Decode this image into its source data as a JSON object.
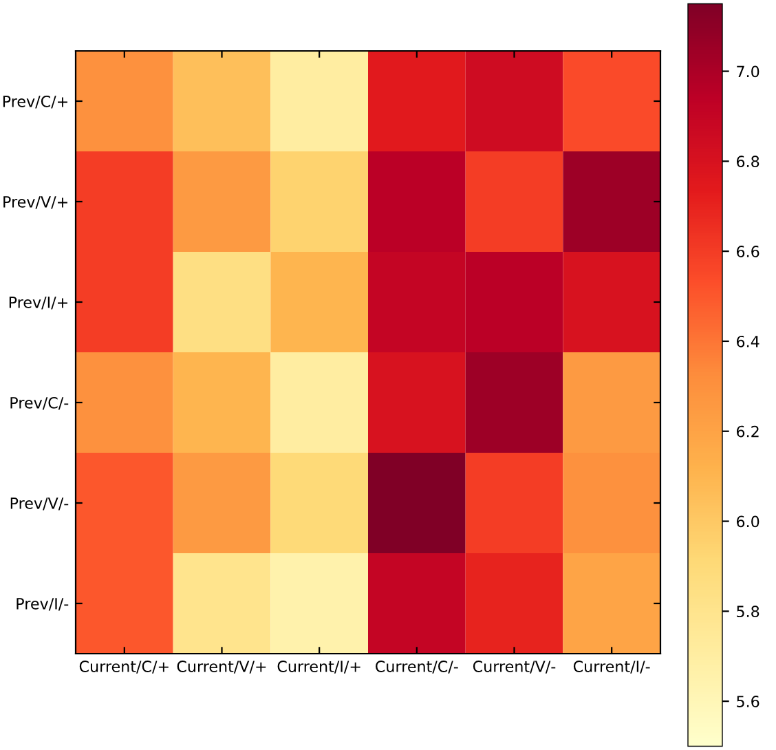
{
  "chart_data": {
    "type": "heatmap",
    "categories": [
      "Current/C/+",
      "Current/V/+",
      "Current/I/+",
      "Current/C/-",
      "Current/V/-",
      "Current/I/-"
    ],
    "y_categories": [
      "Prev/C/+",
      "Prev/V/+",
      "Prev/I/+",
      "Prev/C/-",
      "Prev/V/-",
      "Prev/I/-"
    ],
    "cells": [
      [
        6.3,
        6.05,
        5.7,
        6.75,
        6.85,
        6.55
      ],
      [
        6.6,
        6.25,
        5.95,
        6.95,
        6.6,
        7.05
      ],
      [
        6.6,
        5.85,
        6.1,
        6.9,
        6.95,
        6.8
      ],
      [
        6.3,
        6.1,
        5.7,
        6.8,
        7.05,
        6.25
      ],
      [
        6.5,
        6.25,
        5.9,
        7.15,
        6.6,
        6.3
      ],
      [
        6.5,
        5.8,
        5.65,
        6.9,
        6.7,
        6.2
      ]
    ],
    "clim": [
      5.5,
      7.15
    ],
    "cticks": [
      5.6,
      5.8,
      {
        "value": 6,
        "label": "6.0"
      },
      6.2,
      6.4,
      6.6,
      6.8,
      {
        "value": 7,
        "label": "7.0"
      }
    ]
  }
}
